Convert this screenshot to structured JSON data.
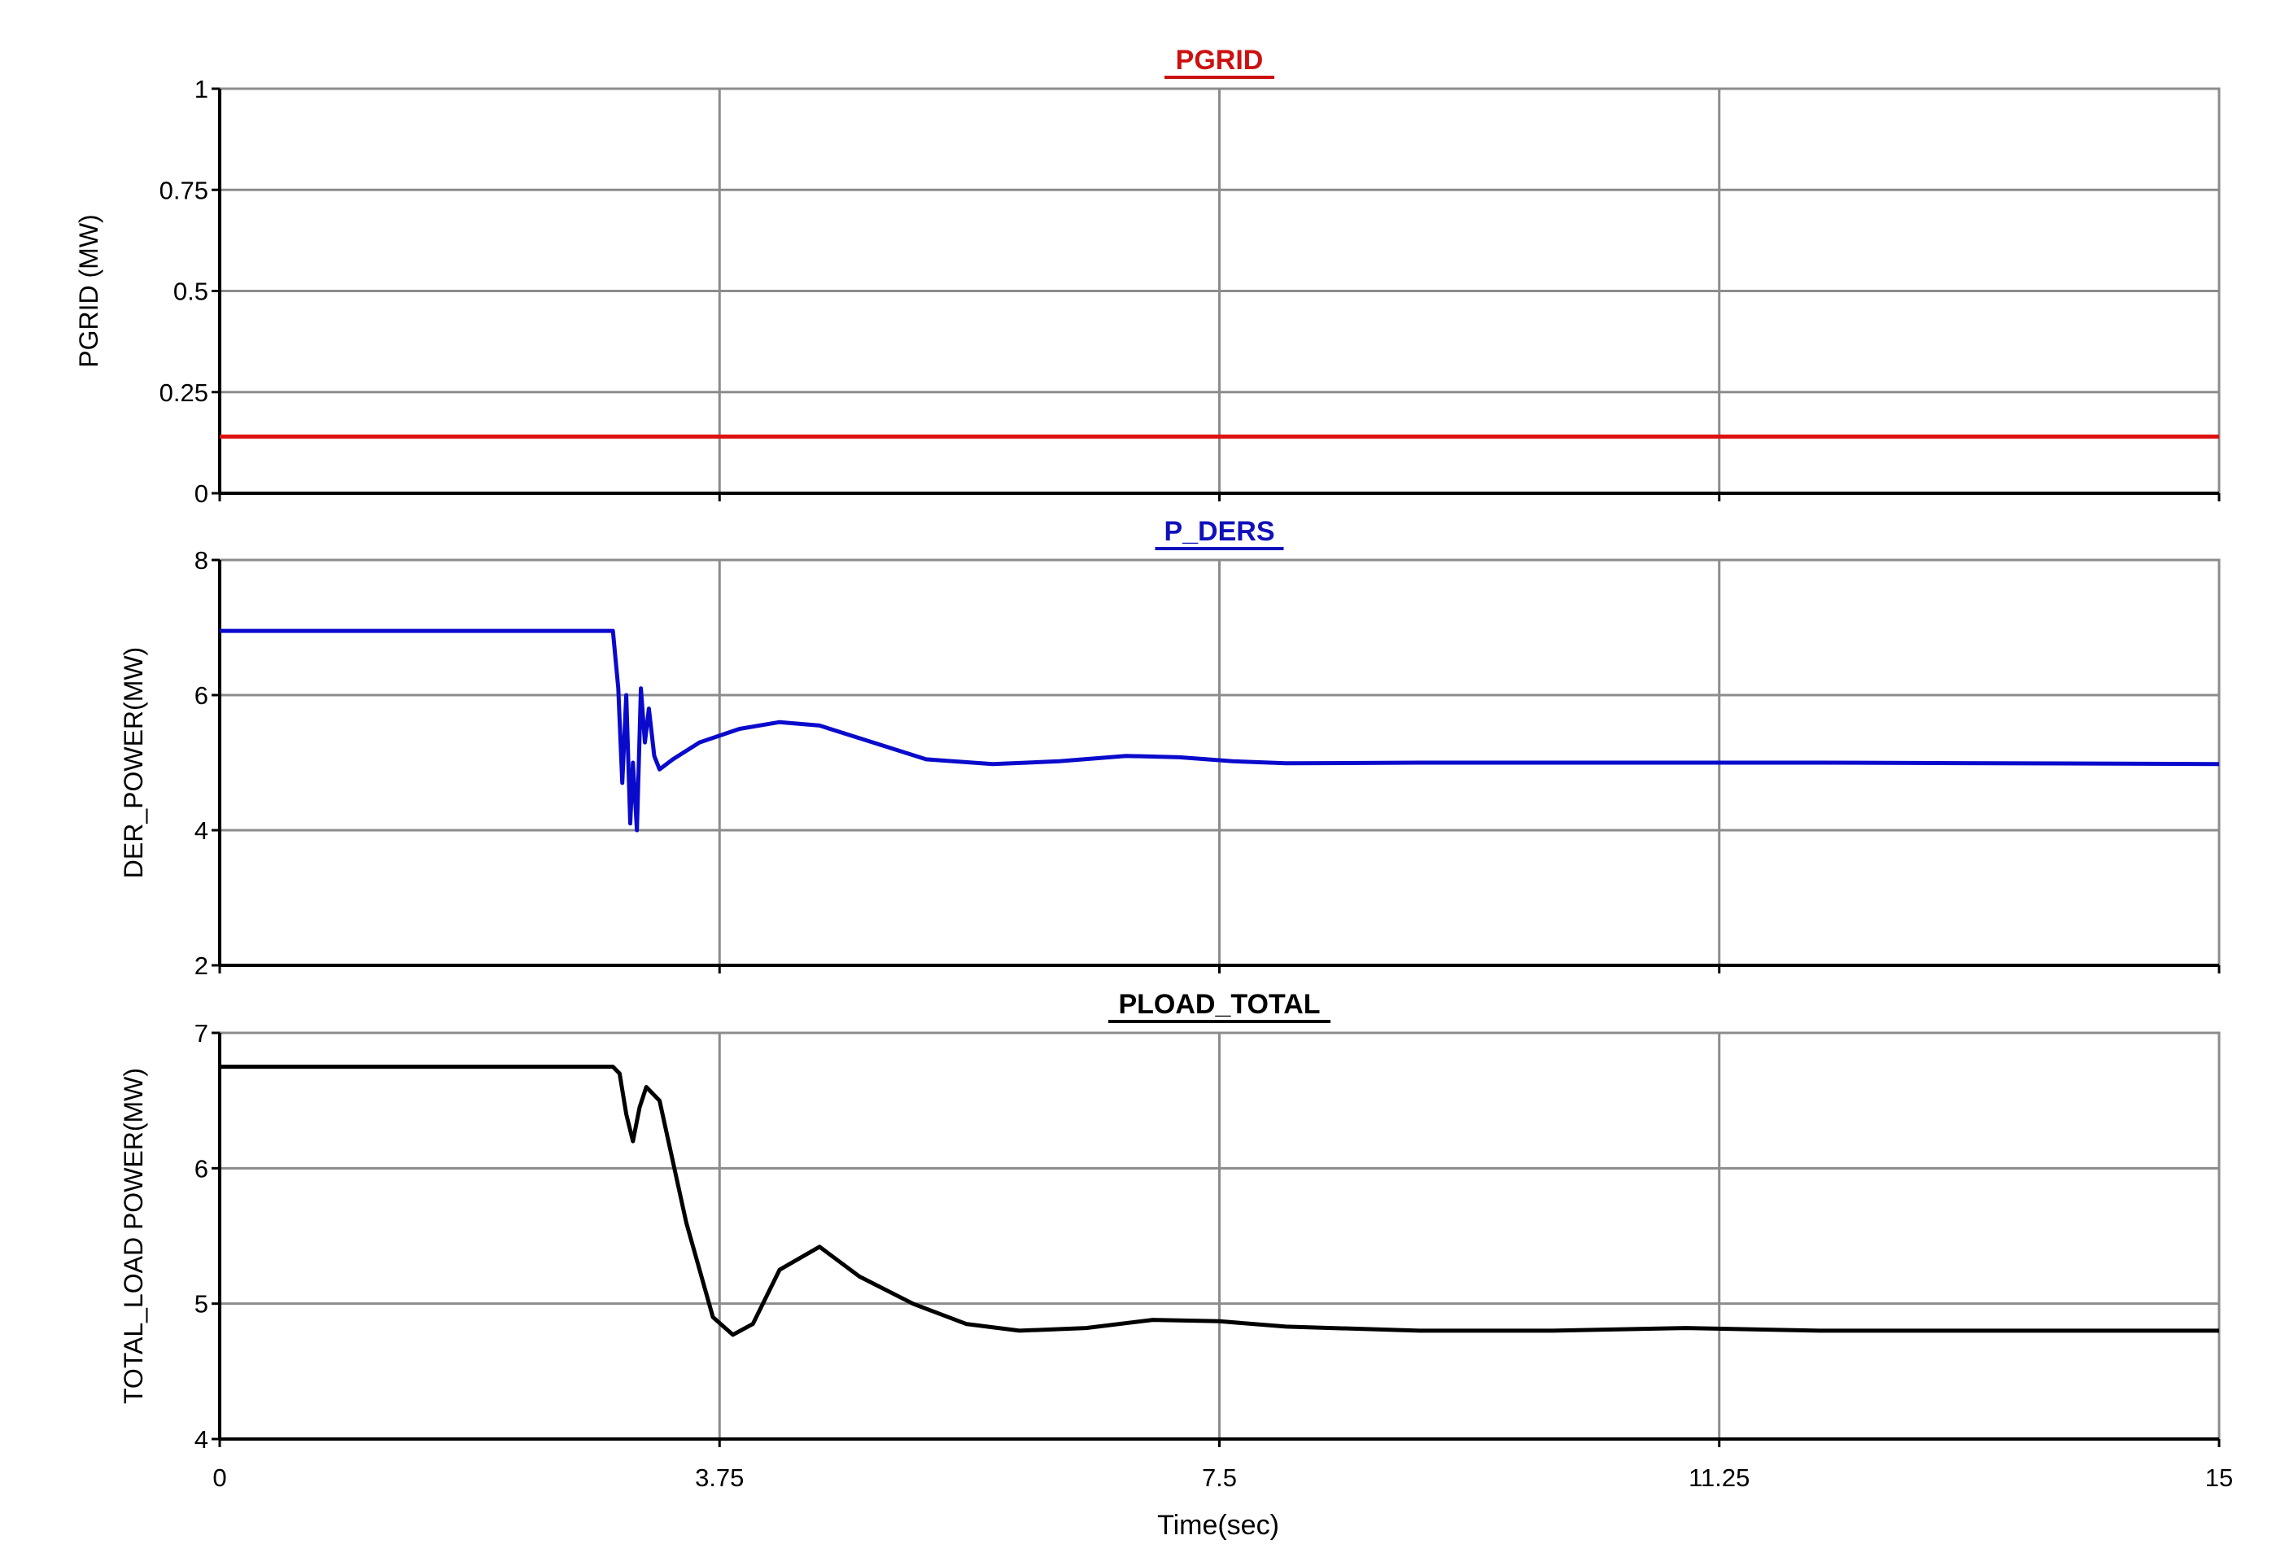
{
  "figure": {
    "xlabel": "Time(sec)"
  },
  "colors": {
    "grid": "#8c8c8c",
    "frame": "#000000"
  },
  "chart_data": [
    {
      "type": "line",
      "title": "PGRID",
      "ylabel": "PGRID (MW)",
      "title_color": "#cc1111",
      "xlim": [
        0,
        15
      ],
      "ylim": [
        0,
        1
      ],
      "xticks": [
        "0",
        "3.75",
        "7.5",
        "11.25",
        "15"
      ],
      "yticks": [
        "0",
        "0.25",
        "0.5",
        "0.75",
        "1"
      ],
      "grid": true,
      "series": [
        {
          "color": "#dd1111",
          "x": [
            0,
            15
          ],
          "y": [
            0.14,
            0.14
          ]
        }
      ]
    },
    {
      "type": "line",
      "title": "P_DERS",
      "ylabel": "DER_POWER(MW)",
      "title_color": "#1111bb",
      "xlim": [
        0,
        15
      ],
      "ylim": [
        2,
        8
      ],
      "xticks": [
        "0",
        "3.75",
        "7.5",
        "11.25",
        "15"
      ],
      "yticks": [
        "2",
        "4",
        "6",
        "8"
      ],
      "grid": true,
      "series": [
        {
          "color": "#0a0acc",
          "x": [
            0,
            2.95,
            2.99,
            3.02,
            3.05,
            3.08,
            3.1,
            3.13,
            3.16,
            3.19,
            3.22,
            3.26,
            3.3,
            3.4,
            3.6,
            3.9,
            4.2,
            4.5,
            4.9,
            5.3,
            5.8,
            6.3,
            6.8,
            7.2,
            7.6,
            8,
            9,
            10,
            12,
            15
          ],
          "y": [
            6.95,
            6.95,
            6.1,
            4.7,
            6.0,
            4.1,
            5.0,
            4.0,
            6.1,
            5.3,
            5.8,
            5.1,
            4.9,
            5.05,
            5.3,
            5.5,
            5.6,
            5.55,
            5.3,
            5.05,
            4.98,
            5.02,
            5.1,
            5.08,
            5.02,
            4.99,
            5.0,
            5.0,
            5.0,
            4.98
          ]
        }
      ]
    },
    {
      "type": "line",
      "title": "PLOAD_TOTAL",
      "ylabel": "TOTAL_LOAD POWER(MW)",
      "title_color": "#000000",
      "xlim": [
        0,
        15
      ],
      "ylim": [
        4,
        7
      ],
      "xticks": [
        "0",
        "3.75",
        "7.5",
        "11.25",
        "15"
      ],
      "yticks": [
        "4",
        "5",
        "6",
        "7"
      ],
      "grid": true,
      "series": [
        {
          "color": "#000000",
          "x": [
            0,
            2.95,
            3.0,
            3.05,
            3.1,
            3.15,
            3.2,
            3.3,
            3.5,
            3.7,
            3.85,
            4.0,
            4.2,
            4.5,
            4.8,
            5.2,
            5.6,
            6.0,
            6.5,
            7.0,
            7.5,
            8.0,
            9.0,
            10.0,
            11.0,
            12.0,
            15.0
          ],
          "y": [
            6.75,
            6.75,
            6.7,
            6.4,
            6.2,
            6.45,
            6.6,
            6.5,
            5.6,
            4.9,
            4.77,
            4.85,
            5.25,
            5.42,
            5.2,
            5.0,
            4.85,
            4.8,
            4.82,
            4.88,
            4.87,
            4.83,
            4.8,
            4.8,
            4.82,
            4.8,
            4.8
          ]
        }
      ]
    }
  ]
}
